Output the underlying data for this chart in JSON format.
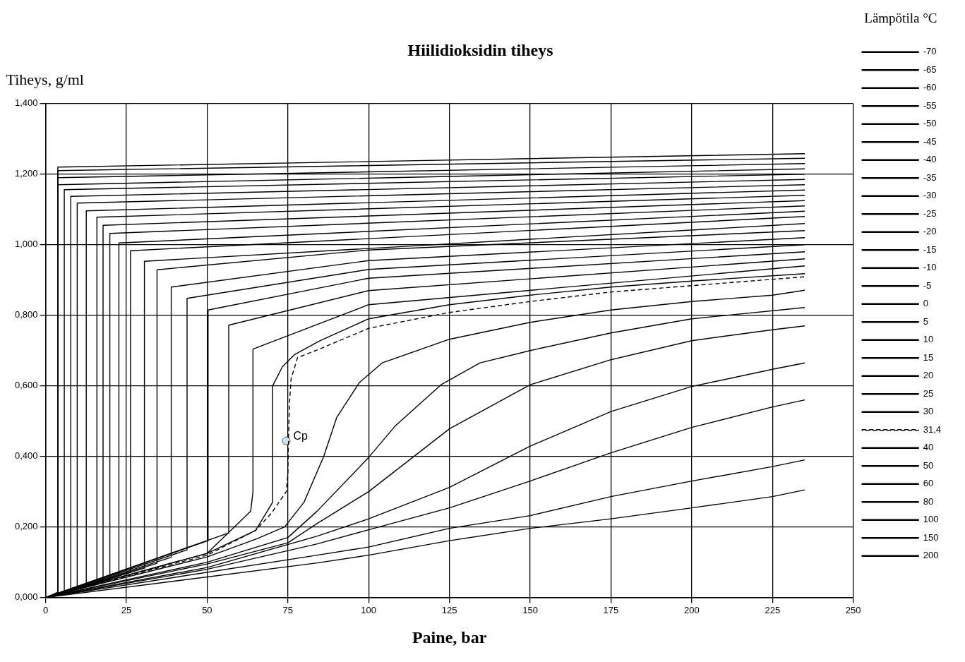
{
  "chart_data": {
    "type": "line",
    "title": "Hiilidioksidin tiheys",
    "xlabel": "Paine, bar",
    "ylabel": "Tiheys, g/ml",
    "legend_title": "Lämpötila °C",
    "legend": "right",
    "grid": true,
    "xlim": [
      0,
      250
    ],
    "xticks": [
      0,
      25,
      50,
      75,
      100,
      125,
      150,
      175,
      200,
      225,
      250
    ],
    "ylim": [
      0,
      1.4
    ],
    "yticks": [
      {
        "value": 0,
        "label": "0,000"
      },
      {
        "value": 0.2,
        "label": "0,200"
      },
      {
        "value": 0.4,
        "label": "0,400"
      },
      {
        "value": 0.6,
        "label": "0,600"
      },
      {
        "value": 0.8,
        "label": "0,800"
      },
      {
        "value": 1,
        "label": "1,000"
      },
      {
        "value": 1.2,
        "label": "1,200"
      },
      {
        "value": 1.4,
        "label": "1,400"
      }
    ],
    "annotations": [
      {
        "text": "Cp",
        "x": 74.5,
        "y": 0.444
      }
    ],
    "series": [
      {
        "name": "-70",
        "color": "#000000",
        "x": [
          0,
          3.8,
          3.8,
          235
        ],
        "values": [
          0,
          0.01,
          1.22,
          1.258
        ]
      },
      {
        "name": "-65",
        "color": "#000000",
        "x": [
          0,
          3.8,
          3.8,
          235
        ],
        "values": [
          0,
          0.01,
          1.21,
          1.245
        ]
      },
      {
        "name": "-60",
        "color": "#000000",
        "x": [
          0,
          3.8,
          3.8,
          235
        ],
        "values": [
          0,
          0.01,
          1.19,
          1.23
        ]
      },
      {
        "name": "-55",
        "color": "#000000",
        "x": [
          0,
          3.8,
          3.8,
          235
        ],
        "values": [
          0,
          0.015,
          1.17,
          1.215
        ]
      },
      {
        "name": "-50",
        "color": "#000000",
        "x": [
          0,
          5.8,
          5.8,
          235
        ],
        "values": [
          0,
          0.018,
          1.156,
          1.2
        ]
      },
      {
        "name": "-45",
        "color": "#000000",
        "x": [
          0,
          7.8,
          7.8,
          235
        ],
        "values": [
          0,
          0.022,
          1.137,
          1.185
        ]
      },
      {
        "name": "-40",
        "color": "#000000",
        "x": [
          0,
          9.8,
          9.8,
          235
        ],
        "values": [
          0,
          0.026,
          1.118,
          1.17
        ]
      },
      {
        "name": "-35",
        "color": "#000000",
        "x": [
          0,
          12.6,
          12.6,
          235
        ],
        "values": [
          0,
          0.032,
          1.096,
          1.155
        ]
      },
      {
        "name": "-30",
        "color": "#000000",
        "x": [
          0,
          15.9,
          15.9,
          235
        ],
        "values": [
          0,
          0.038,
          1.078,
          1.14
        ]
      },
      {
        "name": "-25",
        "color": "#000000",
        "x": [
          0,
          17.8,
          17.8,
          235
        ],
        "values": [
          0,
          0.045,
          1.055,
          1.125
        ]
      },
      {
        "name": "-20",
        "color": "#000000",
        "x": [
          0,
          19.9,
          19.9,
          235
        ],
        "values": [
          0,
          0.052,
          1.032,
          1.11
        ]
      },
      {
        "name": "-15",
        "color": "#000000",
        "x": [
          0,
          22.7,
          22.7,
          235
        ],
        "values": [
          0,
          0.061,
          1.005,
          1.095
        ]
      },
      {
        "name": "-10",
        "color": "#000000",
        "x": [
          0,
          26.3,
          26.3,
          235
        ],
        "values": [
          0,
          0.071,
          0.983,
          1.08
        ]
      },
      {
        "name": "-5",
        "color": "#000000",
        "x": [
          0,
          30.6,
          30.6,
          235
        ],
        "values": [
          0,
          0.083,
          0.953,
          1.06
        ]
      },
      {
        "name": "0",
        "color": "#000000",
        "x": [
          0,
          34.5,
          34.5,
          100,
          235
        ],
        "values": [
          0,
          0.097,
          0.929,
          0.985,
          1.04
        ]
      },
      {
        "name": "5",
        "color": "#000000",
        "x": [
          0,
          38.9,
          38.9,
          100,
          235
        ],
        "values": [
          0,
          0.114,
          0.88,
          0.955,
          1.02
        ]
      },
      {
        "name": "10",
        "color": "#000000",
        "x": [
          0,
          43.8,
          43.8,
          100,
          235
        ],
        "values": [
          0,
          0.135,
          0.848,
          0.93,
          1
        ]
      },
      {
        "name": "15",
        "color": "#000000",
        "x": [
          0,
          50.3,
          50.3,
          100,
          235
        ],
        "values": [
          0,
          0.161,
          0.815,
          0.905,
          0.98
        ]
      },
      {
        "name": "20",
        "color": "#000000",
        "x": [
          0,
          56.7,
          56.7,
          100,
          235
        ],
        "values": [
          0,
          0.183,
          0.772,
          0.87,
          0.96
        ]
      },
      {
        "name": "25",
        "color": "#000000",
        "x": [
          0,
          50,
          63.5,
          64.2,
          64.2,
          100,
          235
        ],
        "values": [
          0,
          0.125,
          0.245,
          0.3,
          0.704,
          0.83,
          0.94
        ]
      },
      {
        "name": "30",
        "color": "#000000",
        "x": [
          0,
          50,
          65,
          70.3,
          70.3,
          73.3,
          77,
          85,
          100,
          125,
          150,
          175,
          200,
          235
        ],
        "values": [
          0,
          0.125,
          0.19,
          0.27,
          0.6,
          0.654,
          0.688,
          0.728,
          0.79,
          0.83,
          0.857,
          0.88,
          0.897,
          0.918
        ]
      },
      {
        "name": "31,4",
        "color": "#000000",
        "line_style": "dashed",
        "x": [
          0,
          50,
          65,
          70,
          74.5,
          75,
          75.2,
          75.5,
          76,
          78,
          85,
          100,
          125,
          150,
          175,
          200,
          225,
          235
        ],
        "values": [
          0,
          0.12,
          0.19,
          0.24,
          0.3,
          0.35,
          0.45,
          0.55,
          0.62,
          0.68,
          0.705,
          0.763,
          0.808,
          0.839,
          0.866,
          0.884,
          0.902,
          0.909
        ]
      },
      {
        "name": "40",
        "color": "#000000",
        "x": [
          0,
          50,
          65,
          74,
          80,
          86.1,
          90.1,
          97.2,
          104.2,
          125,
          150,
          175,
          200,
          225,
          235
        ],
        "values": [
          0,
          0.115,
          0.165,
          0.2,
          0.27,
          0.4,
          0.51,
          0.61,
          0.665,
          0.732,
          0.78,
          0.815,
          0.839,
          0.857,
          0.871
        ]
      },
      {
        "name": "50",
        "color": "#000000",
        "x": [
          0,
          50,
          75,
          84.1,
          100,
          108.3,
          122.4,
          134.5,
          150,
          175,
          200,
          235
        ],
        "values": [
          0,
          0.1,
          0.17,
          0.245,
          0.397,
          0.487,
          0.603,
          0.665,
          0.7,
          0.75,
          0.79,
          0.822
        ]
      },
      {
        "name": "60",
        "color": "#000000",
        "x": [
          0,
          50,
          75,
          84.1,
          100,
          125,
          150,
          175,
          200,
          225,
          235
        ],
        "values": [
          0,
          0.095,
          0.155,
          0.21,
          0.3,
          0.478,
          0.603,
          0.674,
          0.728,
          0.759,
          0.77
        ]
      },
      {
        "name": "80",
        "color": "#000000",
        "x": [
          0,
          50,
          84.1,
          100,
          125,
          150,
          175,
          200,
          225,
          235
        ],
        "values": [
          0,
          0.085,
          0.174,
          0.223,
          0.312,
          0.429,
          0.527,
          0.598,
          0.647,
          0.665
        ]
      },
      {
        "name": "100",
        "color": "#000000",
        "x": [
          0,
          50,
          84.1,
          100,
          125,
          150,
          175,
          200,
          225,
          235
        ],
        "values": [
          0,
          0.08,
          0.152,
          0.192,
          0.254,
          0.33,
          0.41,
          0.482,
          0.54,
          0.56
        ]
      },
      {
        "name": "150",
        "color": "#000000",
        "x": [
          0,
          84.1,
          100,
          125,
          150,
          175,
          200,
          225,
          235
        ],
        "values": [
          0,
          0.12,
          0.143,
          0.196,
          0.232,
          0.286,
          0.33,
          0.371,
          0.39
        ]
      },
      {
        "name": "200",
        "color": "#000000",
        "x": [
          0,
          84.1,
          100,
          125,
          150,
          175,
          200,
          225,
          235
        ],
        "values": [
          0,
          0.098,
          0.12,
          0.161,
          0.196,
          0.223,
          0.254,
          0.286,
          0.305
        ]
      },
      {
        "type": "scatter",
        "color": "#cfe3f3",
        "marker": "circle",
        "x": [
          74.5
        ],
        "values": [
          0.444
        ]
      }
    ]
  }
}
